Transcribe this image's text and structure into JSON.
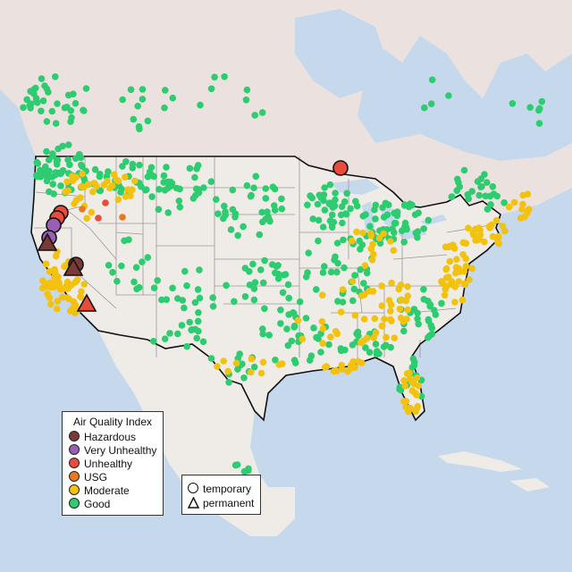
{
  "map": {
    "colors": {
      "water": "#c6d8ec",
      "land": "#ede8e3",
      "land_north": "#e9dfdd",
      "state_line": "#999999",
      "border": "#111111"
    }
  },
  "categories": [
    {
      "key": "hazardous",
      "label": "Hazardous",
      "color": "#7b3a35"
    },
    {
      "key": "very_unhealthy",
      "label": "Very Unhealthy",
      "color": "#9a5fb5"
    },
    {
      "key": "unhealthy",
      "label": "Unhealthy",
      "color": "#ea4c3c"
    },
    {
      "key": "usg",
      "label": "USG",
      "color": "#e67a1f"
    },
    {
      "key": "moderate",
      "label": "Moderate",
      "color": "#f2c20f"
    },
    {
      "key": "good",
      "label": "Good",
      "color": "#2ecc71"
    }
  ],
  "legend": {
    "title": "Air Quality Index",
    "shapes": {
      "temporary": "temporary",
      "permanent": "permanent"
    }
  }
}
